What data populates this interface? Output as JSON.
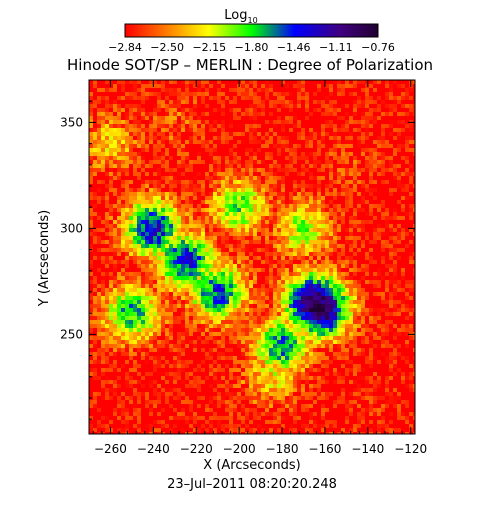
{
  "chart_data": {
    "type": "heatmap",
    "title": "Hinode SOT/SP – MERLIN : Degree of Polarization",
    "colorbar": {
      "label": "Log",
      "label_subscript": "10",
      "tick_labels": [
        "−2.84",
        "−2.50",
        "−2.15",
        "−1.80",
        "−1.46",
        "−1.11",
        "−0.76"
      ],
      "range": [
        -2.84,
        -0.76
      ],
      "colors": [
        "#ff0000",
        "#ff7f00",
        "#ffff00",
        "#00ff00",
        "#0000ff",
        "#4b0082",
        "#2a0040"
      ]
    },
    "xlabel": "X (Arcseconds)",
    "ylabel": "Y (Arcseconds)",
    "xlim": [
      -270,
      -118
    ],
    "ylim": [
      203,
      370
    ],
    "xticks": [
      -260,
      -240,
      -220,
      -200,
      -180,
      -160,
      -140,
      -120
    ],
    "xtick_labels": [
      "−260",
      "−240",
      "−220",
      "−200",
      "−180",
      "−160",
      "−140",
      "−120"
    ],
    "yticks": [
      250,
      300,
      350
    ],
    "ytick_labels": [
      "250",
      "300",
      "350"
    ],
    "timestamp": "23–Jul–2011  08:20:20.248",
    "features": [
      {
        "x": -165,
        "y": 265,
        "value": -0.8
      },
      {
        "x": -162,
        "y": 262,
        "value": -0.85
      },
      {
        "x": -240,
        "y": 300,
        "value": -1.3
      },
      {
        "x": -225,
        "y": 285,
        "value": -1.4
      },
      {
        "x": -210,
        "y": 270,
        "value": -1.5
      },
      {
        "x": -180,
        "y": 245,
        "value": -1.6
      },
      {
        "x": -250,
        "y": 260,
        "value": -1.7
      },
      {
        "x": -200,
        "y": 310,
        "value": -1.9
      },
      {
        "x": -170,
        "y": 300,
        "value": -2.0
      },
      {
        "x": -185,
        "y": 230,
        "value": -2.2
      },
      {
        "x": -260,
        "y": 340,
        "value": -2.3
      },
      {
        "x": -230,
        "y": 350,
        "value": -2.6
      },
      {
        "x": -150,
        "y": 330,
        "value": -2.7
      },
      {
        "x": -140,
        "y": 220,
        "value": -2.8
      }
    ]
  }
}
